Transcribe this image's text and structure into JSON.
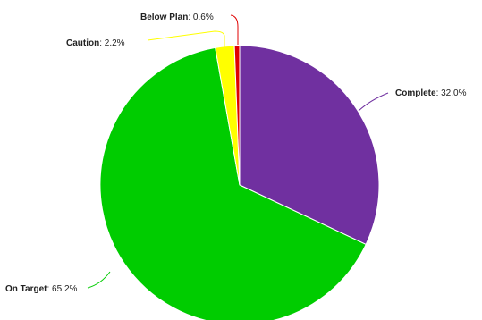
{
  "chart_data": {
    "type": "pie",
    "title": "",
    "slices": [
      {
        "label": "Complete",
        "value": 32.0,
        "display": "32.0%",
        "color": "#7030a0"
      },
      {
        "label": "On Target",
        "value": 65.2,
        "display": "65.2%",
        "color": "#00cc00"
      },
      {
        "label": "Caution",
        "value": 2.2,
        "display": "2.2%",
        "color": "#ffff00"
      },
      {
        "label": "Below Plan",
        "value": 0.6,
        "display": "0.6%",
        "color": "#e00000"
      }
    ],
    "start": "12 o'clock",
    "direction": "clockwise",
    "legend": "none",
    "labels": "outside with leader lines"
  }
}
